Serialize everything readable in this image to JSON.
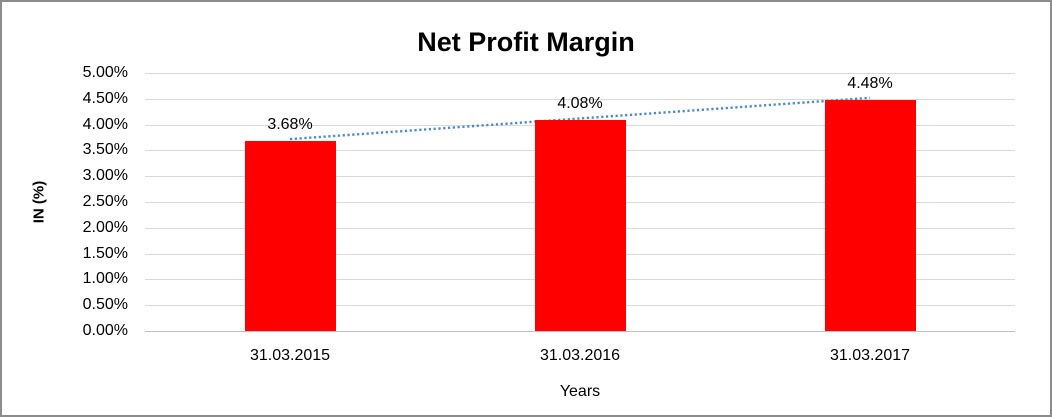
{
  "chart_data": {
    "type": "bar",
    "title": "Net Profit Margin",
    "xlabel": "Years",
    "ylabel": "IN (%)",
    "categories": [
      "31.03.2015",
      "31.03.2016",
      "31.03.2017"
    ],
    "values": [
      3.68,
      4.08,
      4.48
    ],
    "data_labels": [
      "3.68%",
      "4.08%",
      "4.48%"
    ],
    "ylim": [
      0,
      5
    ],
    "ytick_step": 0.5,
    "ytick_labels": [
      "5.00%",
      "4.50%",
      "4.00%",
      "3.50%",
      "3.00%",
      "2.50%",
      "2.00%",
      "1.50%",
      "1.00%",
      "0.50%",
      "0.00%"
    ],
    "grid": true,
    "legend": "none",
    "trendline": {
      "type": "linear",
      "style": "dotted",
      "color": "#4E87C7"
    },
    "colors": {
      "bar": "#FF0000",
      "gridline": "#D9D9D9",
      "axis_line": "#BFBFBF",
      "text": "#000000",
      "border": "#8C8C8C",
      "background": "#FFFFFF"
    }
  }
}
